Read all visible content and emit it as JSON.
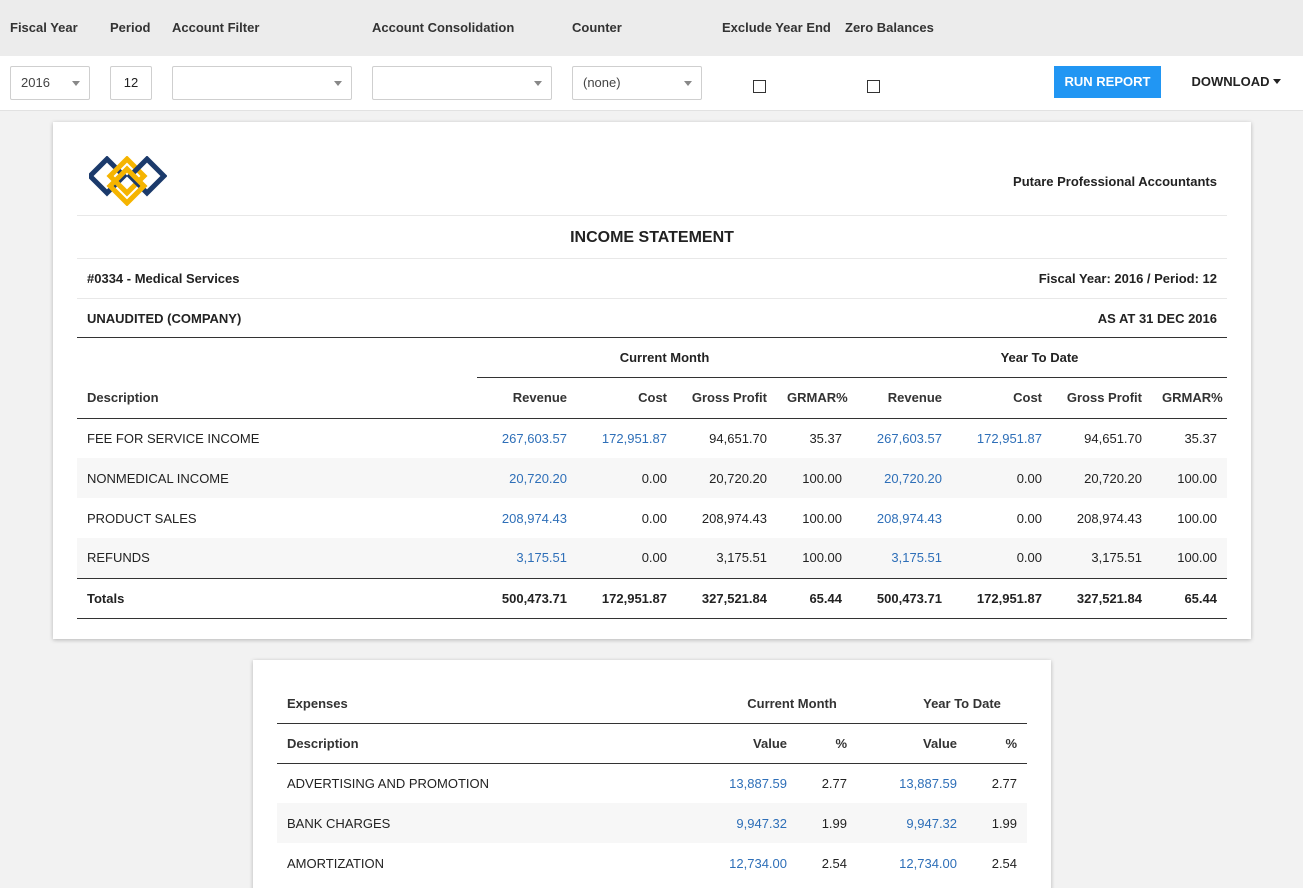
{
  "filters": {
    "labels": {
      "fiscal_year": "Fiscal Year",
      "period": "Period",
      "account_filter": "Account Filter",
      "account_consolidation": "Account Consolidation",
      "counter": "Counter",
      "exclude_year_end": "Exclude Year End",
      "zero_balances": "Zero Balances"
    },
    "values": {
      "fiscal_year": "2016",
      "period": "12",
      "account_filter": "",
      "account_consolidation": "",
      "counter": "(none)"
    },
    "run_report": "RUN REPORT",
    "download": "DOWNLOAD"
  },
  "report": {
    "firm": "Putare Professional Accountants",
    "title": "INCOME STATEMENT",
    "entity": "#0334 - Medical Services",
    "fiscal_info": "Fiscal Year: 2016 / Period: 12",
    "audit_status": "UNAUDITED (COMPANY)",
    "as_at": "AS AT 31 DEC 2016",
    "groups": [
      "Current Month",
      "Year To Date"
    ],
    "headers": [
      "Description",
      "Revenue",
      "Cost",
      "Gross Profit",
      "GRMAR%",
      "Revenue",
      "Cost",
      "Gross Profit",
      "GRMAR%"
    ],
    "rows": [
      [
        "FEE FOR SERVICE INCOME",
        "267,603.57",
        "172,951.87",
        "94,651.70",
        "35.37",
        "267,603.57",
        "172,951.87",
        "94,651.70",
        "35.37"
      ],
      [
        "NONMEDICAL INCOME",
        "20,720.20",
        "0.00",
        "20,720.20",
        "100.00",
        "20,720.20",
        "0.00",
        "20,720.20",
        "100.00"
      ],
      [
        "PRODUCT SALES",
        "208,974.43",
        "0.00",
        "208,974.43",
        "100.00",
        "208,974.43",
        "0.00",
        "208,974.43",
        "100.00"
      ],
      [
        "REFUNDS",
        "3,175.51",
        "0.00",
        "3,175.51",
        "100.00",
        "3,175.51",
        "0.00",
        "3,175.51",
        "100.00"
      ]
    ],
    "totals": [
      "Totals",
      "500,473.71",
      "172,951.87",
      "327,521.84",
      "65.44",
      "500,473.71",
      "172,951.87",
      "327,521.84",
      "65.44"
    ]
  },
  "expenses": {
    "section_label": "Expenses",
    "groups": [
      "Current Month",
      "Year To Date"
    ],
    "headers": [
      "Description",
      "Value",
      "%",
      "Value",
      "%"
    ],
    "rows": [
      [
        "ADVERTISING AND PROMOTION",
        "13,887.59",
        "2.77",
        "13,887.59",
        "2.77"
      ],
      [
        "BANK CHARGES",
        "9,947.32",
        "1.99",
        "9,947.32",
        "1.99"
      ],
      [
        "AMORTIZATION",
        "12,734.00",
        "2.54",
        "12,734.00",
        "2.54"
      ]
    ]
  },
  "colors": {
    "accent": "#2196f3",
    "link": "#2e6fb8",
    "logo_navy": "#1b3a6b",
    "logo_gold": "#f5b400"
  }
}
